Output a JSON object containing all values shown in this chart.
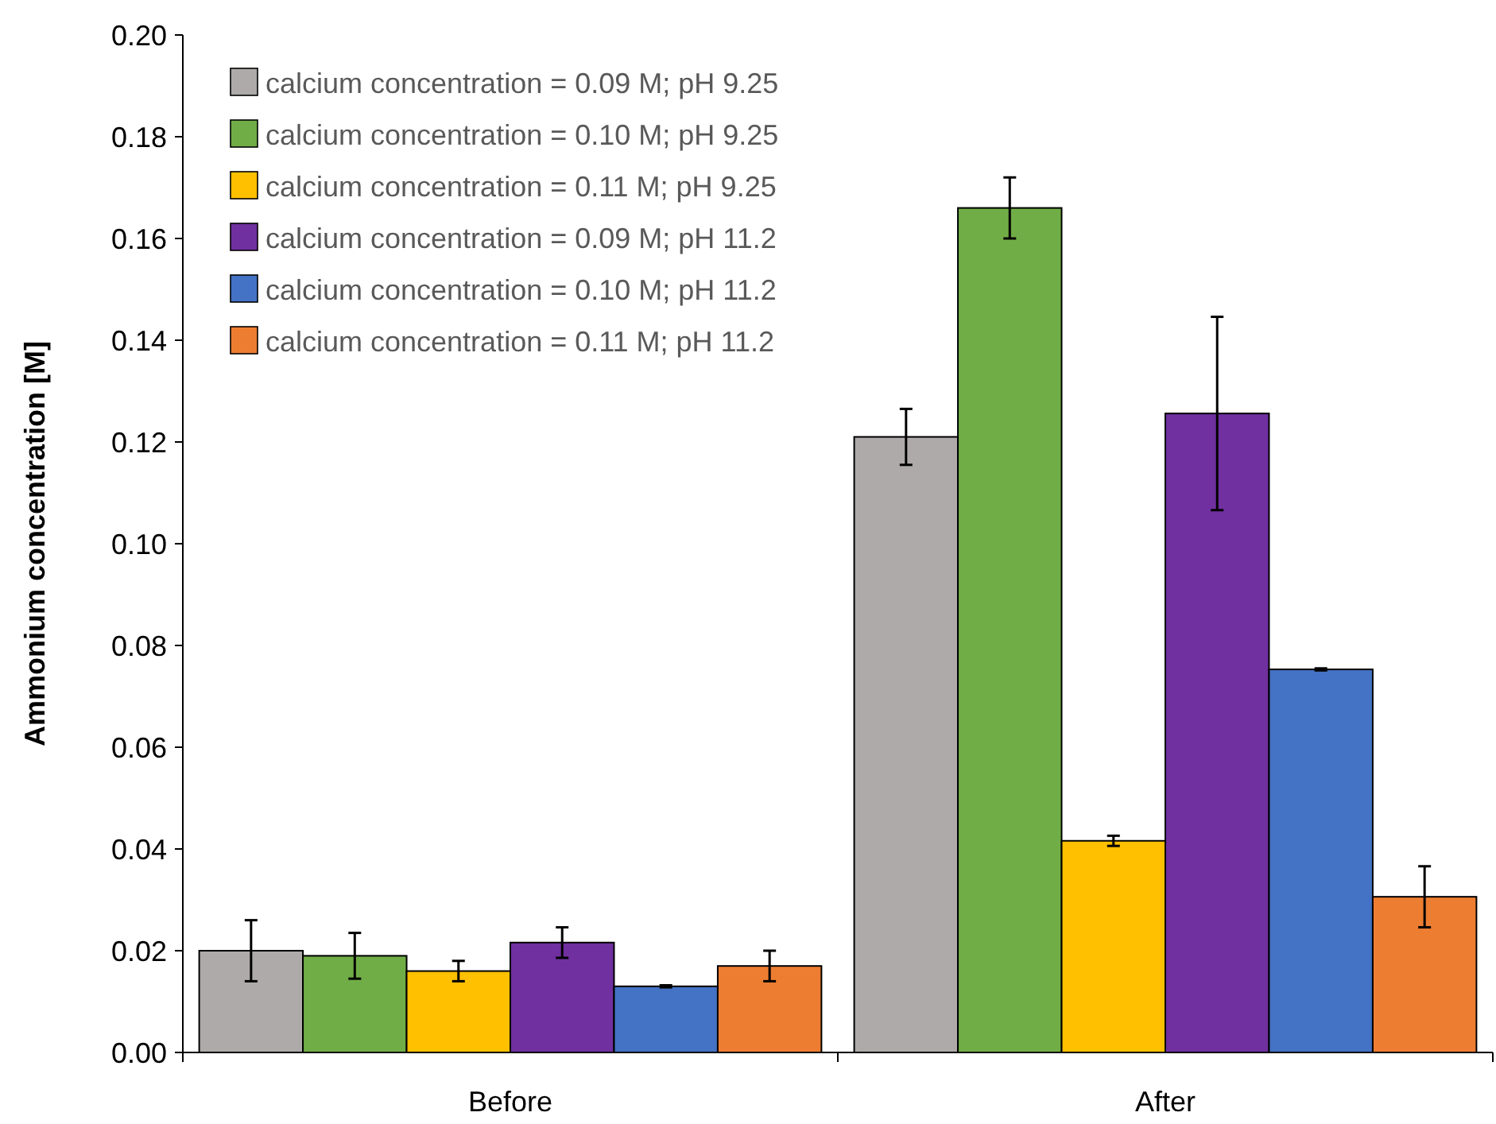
{
  "chart_data": {
    "type": "bar",
    "ylabel": "Ammonium concentration [M]",
    "categories": [
      "Before",
      "After"
    ],
    "ylim": [
      0,
      0.2
    ],
    "yticks": [
      {
        "value": 0,
        "label": "0.00"
      },
      {
        "value": 0.02,
        "label": "0.02"
      },
      {
        "value": 0.04,
        "label": "0.04"
      },
      {
        "value": 0.06,
        "label": "0.06"
      },
      {
        "value": 0.08,
        "label": "0.08"
      },
      {
        "value": 0.1,
        "label": "0.10"
      },
      {
        "value": 0.12,
        "label": "0.12"
      },
      {
        "value": 0.14,
        "label": "0.14"
      },
      {
        "value": 0.16,
        "label": "0.16"
      },
      {
        "value": 0.18,
        "label": "0.18"
      },
      {
        "value": 0.2,
        "label": "0.20"
      }
    ],
    "grid": false,
    "legend": "top left",
    "series": [
      {
        "name": "calcium concentration = 0.09 M; pH 9.25",
        "color": "#aeaaaa",
        "values": [
          0.02,
          0.121
        ],
        "errors": [
          0.006,
          0.0055
        ]
      },
      {
        "name": "calcium concentration = 0.10 M; pH 9.25",
        "color": "#70ad47",
        "values": [
          0.019,
          0.166
        ],
        "errors": [
          0.0045,
          0.006
        ]
      },
      {
        "name": "calcium concentration = 0.11 M; pH 9.25",
        "color": "#ffc000",
        "values": [
          0.016,
          0.0416
        ],
        "errors": [
          0.002,
          0.001
        ]
      },
      {
        "name": "calcium concentration = 0.09 M; pH 11.2",
        "color": "#7030a0",
        "values": [
          0.0216,
          0.1256
        ],
        "errors": [
          0.003,
          0.019
        ]
      },
      {
        "name": "calcium concentration = 0.10 M; pH 11.2",
        "color": "#4472c4",
        "values": [
          0.013,
          0.0753
        ],
        "errors": [
          0.0002,
          0.0002
        ]
      },
      {
        "name": "calcium concentration = 0.11 M; pH 11.2",
        "color": "#ed7d31",
        "values": [
          0.017,
          0.0306
        ],
        "errors": [
          0.003,
          0.006
        ]
      }
    ]
  }
}
